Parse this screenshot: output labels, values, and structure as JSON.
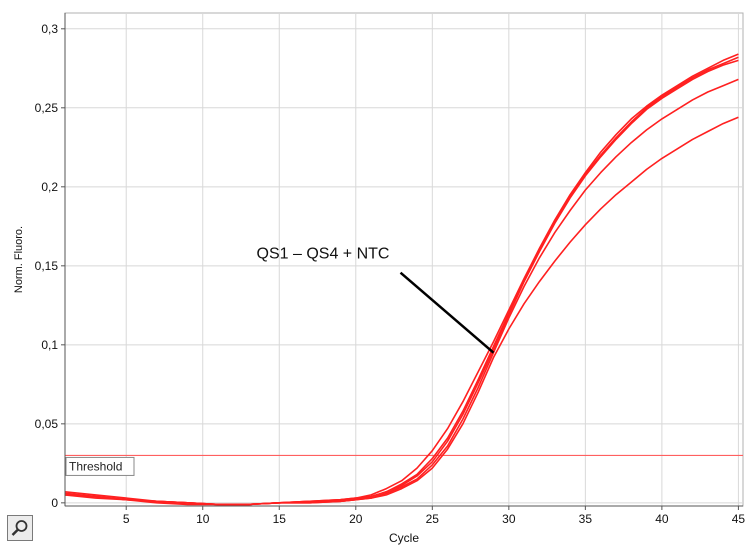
{
  "chart_data": {
    "type": "line",
    "ylabel": "Norm. Fluoro.",
    "xlabel": "Cycle",
    "xlim": [
      1,
      45.3
    ],
    "ylim": [
      -0.002,
      0.31
    ],
    "xticks": [
      5,
      10,
      15,
      20,
      25,
      30,
      35,
      40,
      45
    ],
    "yticks": [
      0,
      0.05,
      0.1,
      0.15,
      0.2,
      0.25,
      0.3
    ],
    "ytick_labels": [
      "0",
      "0,05",
      "0,1",
      "0,15",
      "0,2",
      "0,25",
      "0,3"
    ],
    "grid": true,
    "series": [
      {
        "x": [
          1,
          3,
          5,
          7,
          9,
          11,
          13,
          15,
          17,
          19,
          20,
          21,
          22,
          23,
          24,
          25,
          26,
          27,
          28,
          29,
          30,
          31,
          32,
          33,
          34,
          35,
          36,
          37,
          38,
          39,
          40,
          41,
          42,
          43,
          44,
          45
        ],
        "y": [
          0.007,
          0.005,
          0.003,
          0.001,
          0.0,
          -0.001,
          -0.001,
          0.0,
          0.001,
          0.002,
          0.003,
          0.005,
          0.009,
          0.014,
          0.022,
          0.033,
          0.047,
          0.064,
          0.083,
          0.102,
          0.122,
          0.142,
          0.161,
          0.179,
          0.195,
          0.209,
          0.222,
          0.233,
          0.243,
          0.251,
          0.258,
          0.264,
          0.27,
          0.275,
          0.28,
          0.284
        ]
      },
      {
        "x": [
          1,
          3,
          5,
          7,
          9,
          11,
          13,
          15,
          17,
          19,
          20,
          21,
          22,
          23,
          24,
          25,
          26,
          27,
          28,
          29,
          30,
          31,
          32,
          33,
          34,
          35,
          36,
          37,
          38,
          39,
          40,
          41,
          42,
          43,
          44,
          45
        ],
        "y": [
          0.006,
          0.004,
          0.002,
          0.001,
          0.0,
          -0.001,
          -0.001,
          0.0,
          0.001,
          0.002,
          0.003,
          0.004,
          0.007,
          0.011,
          0.017,
          0.026,
          0.039,
          0.056,
          0.076,
          0.097,
          0.119,
          0.14,
          0.159,
          0.177,
          0.193,
          0.207,
          0.219,
          0.23,
          0.24,
          0.249,
          0.256,
          0.262,
          0.268,
          0.273,
          0.277,
          0.28
        ]
      },
      {
        "x": [
          1,
          3,
          5,
          7,
          9,
          11,
          13,
          15,
          17,
          19,
          20,
          21,
          22,
          23,
          24,
          25,
          26,
          27,
          28,
          29,
          30,
          31,
          32,
          33,
          34,
          35,
          36,
          37,
          38,
          39,
          40,
          41,
          42,
          43,
          44,
          45
        ],
        "y": [
          0.005,
          0.004,
          0.002,
          0.001,
          0.0,
          -0.001,
          -0.001,
          0.0,
          0.0,
          0.001,
          0.002,
          0.003,
          0.006,
          0.01,
          0.015,
          0.024,
          0.036,
          0.053,
          0.073,
          0.095,
          0.117,
          0.137,
          0.155,
          0.171,
          0.185,
          0.198,
          0.209,
          0.219,
          0.228,
          0.236,
          0.243,
          0.249,
          0.255,
          0.26,
          0.264,
          0.268
        ]
      },
      {
        "x": [
          1,
          3,
          5,
          7,
          9,
          11,
          13,
          15,
          17,
          19,
          20,
          21,
          22,
          23,
          24,
          25,
          26,
          27,
          28,
          29,
          30,
          31,
          32,
          33,
          34,
          35,
          36,
          37,
          38,
          39,
          40,
          41,
          42,
          43,
          44,
          45
        ],
        "y": [
          0.005,
          0.003,
          0.002,
          0.0,
          -0.001,
          -0.001,
          -0.001,
          0.0,
          0.0,
          0.001,
          0.002,
          0.003,
          0.005,
          0.009,
          0.014,
          0.022,
          0.034,
          0.05,
          0.07,
          0.092,
          0.11,
          0.126,
          0.14,
          0.153,
          0.165,
          0.176,
          0.186,
          0.195,
          0.203,
          0.211,
          0.218,
          0.224,
          0.23,
          0.235,
          0.24,
          0.244
        ]
      },
      {
        "x": [
          1,
          3,
          5,
          7,
          9,
          11,
          13,
          15,
          17,
          19,
          20,
          21,
          22,
          23,
          24,
          25,
          26,
          27,
          28,
          29,
          30,
          31,
          32,
          33,
          34,
          35,
          36,
          37,
          38,
          39,
          40,
          41,
          42,
          43,
          44,
          45
        ],
        "y": [
          0.006,
          0.004,
          0.002,
          0.001,
          0.0,
          -0.001,
          -0.001,
          0.0,
          0.001,
          0.001,
          0.002,
          0.004,
          0.007,
          0.012,
          0.018,
          0.028,
          0.041,
          0.058,
          0.078,
          0.099,
          0.12,
          0.141,
          0.16,
          0.178,
          0.194,
          0.208,
          0.22,
          0.231,
          0.241,
          0.25,
          0.257,
          0.263,
          0.269,
          0.274,
          0.278,
          0.282
        ]
      }
    ],
    "threshold": {
      "label": "Threshold",
      "value": 0.03
    },
    "annotation": {
      "text": "QS1 – QS4 + NTC",
      "point": [
        29,
        0.095
      ]
    }
  },
  "colors": {
    "curve": "#ff2020",
    "threshold": "#ff6060",
    "grid": "#d8d8d8",
    "axis": "#555555",
    "pointer": "#000000"
  },
  "toolbar": {
    "icon": "magnifier-icon"
  }
}
